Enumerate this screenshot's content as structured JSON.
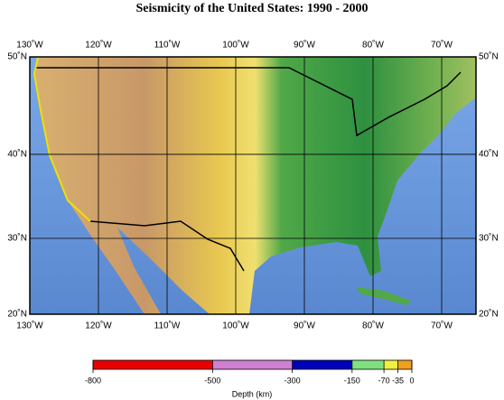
{
  "chart_data": {
    "type": "map",
    "title": "Seismicity of the United States: 1990 - 2000",
    "projection": "mercator",
    "xlim": [
      -130,
      -65
    ],
    "ylim": [
      20,
      50
    ],
    "xticks": [
      {
        "value": -130,
        "label": "130˚W"
      },
      {
        "value": -120,
        "label": "120˚W"
      },
      {
        "value": -110,
        "label": "110˚W"
      },
      {
        "value": -100,
        "label": "100˚W"
      },
      {
        "value": -90,
        "label": "90˚W"
      },
      {
        "value": -80,
        "label": "80˚W"
      },
      {
        "value": -70,
        "label": "70˚W"
      }
    ],
    "yticks": [
      {
        "value": 20,
        "label": "20˚N"
      },
      {
        "value": 30,
        "label": "30˚N"
      },
      {
        "value": 40,
        "label": "40˚N"
      },
      {
        "value": 50,
        "label": "50˚N"
      }
    ],
    "grid": true,
    "colorbar": {
      "label": "Depth (km)",
      "lim": [
        -800,
        0
      ],
      "ticks": [
        -800,
        -500,
        -300,
        -150,
        -70,
        -35,
        0
      ],
      "colors": [
        "#e80000",
        "#d080d0",
        "#0000b8",
        "#80e080",
        "#f0f040",
        "#f0a020"
      ]
    }
  }
}
